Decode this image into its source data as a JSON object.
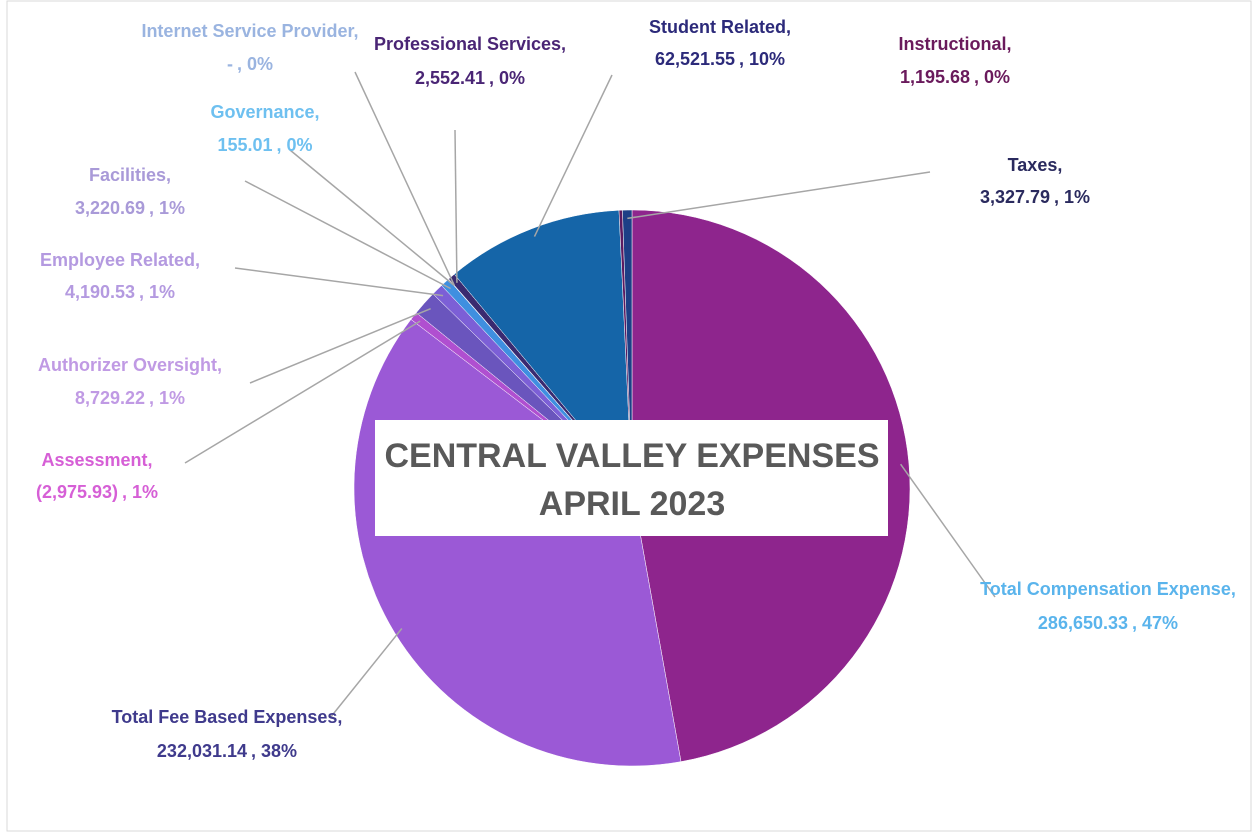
{
  "chart_data": {
    "type": "pie",
    "title": "CENTRAL VALLEY EXPENSES",
    "subtitle": "APRIL 2023",
    "separator": ",",
    "categories": [
      "Total Compensation Expense",
      "Total Fee Based Expenses",
      "Assessment",
      "Authorizer Oversight",
      "Employee Related",
      "Facilities",
      "Governance",
      "Internet Service Provider",
      "Professional Services",
      "Student Related",
      "Instructional",
      "Taxes"
    ],
    "values": [
      286650.33,
      232031.14,
      -2975.93,
      8729.22,
      4190.53,
      3220.69,
      155.01,
      0,
      2552.41,
      62521.55,
      1195.68,
      3327.79
    ],
    "value_labels": [
      "286,650.33",
      "232,031.14",
      "(2,975.93)",
      "8,729.22",
      "4,190.53",
      "3,220.69",
      "155.01",
      "-",
      "2,552.41",
      "62,521.55",
      "1,195.68",
      "3,327.79"
    ],
    "percent_labels": [
      "47%",
      "38%",
      "1%",
      "1%",
      "1%",
      "1%",
      "0%",
      "0%",
      "0%",
      "10%",
      "0%",
      "1%"
    ],
    "colors": [
      "#8e258d",
      "#9b59d6",
      "#b04fd0",
      "#6a55bd",
      "#7c5fd6",
      "#3f8fe0",
      "#5ab0ec",
      "#3a4fa8",
      "#3a2a70",
      "#1565a8",
      "#5c1a60",
      "#1d3f86"
    ],
    "label_colors": [
      "#5ab4ec",
      "#3f3a8c",
      "#d65fd6",
      "#c09ae4",
      "#b49ae0",
      "#a99ad8",
      "#6ec0f0",
      "#9ab4e0",
      "#4a2575",
      "#2c2a7a",
      "#6a1a5c",
      "#2a2a5e"
    ]
  }
}
